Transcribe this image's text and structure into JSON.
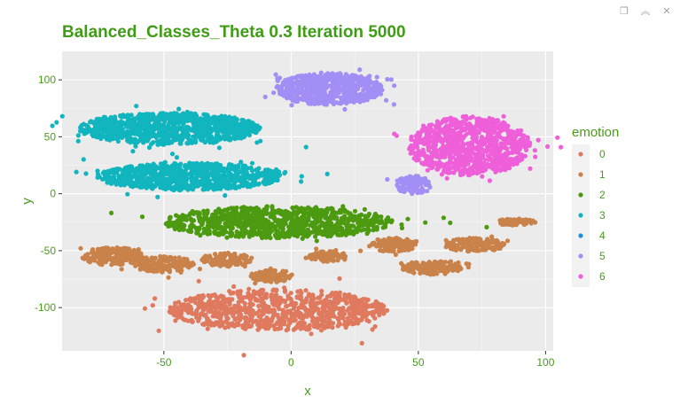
{
  "window": {
    "controls": [
      {
        "name": "restore-icon",
        "glyph": "❐"
      },
      {
        "name": "collapse-icon",
        "glyph": "︽"
      },
      {
        "name": "close-icon",
        "glyph": "✕"
      }
    ]
  },
  "chart_data": {
    "type": "scatter",
    "title": "Balanced_Classes_Theta 0.3 Iteration 5000",
    "xlabel": "x",
    "ylabel": "y",
    "xlim": [
      -90,
      103
    ],
    "ylim": [
      -138,
      125
    ],
    "xticks": [
      -50,
      0,
      50,
      100
    ],
    "yticks": [
      -100,
      -50,
      0,
      50,
      100
    ],
    "grid": true,
    "legend": {
      "title": "emotion",
      "position": "right",
      "entries": [
        "0",
        "1",
        "2",
        "3",
        "4",
        "5",
        "6"
      ]
    },
    "series": [
      {
        "name": "0",
        "color": "#E07A5F",
        "clusters": [
          {
            "cx": -5,
            "cy": -102,
            "rx": 43,
            "ry": 18
          }
        ]
      },
      {
        "name": "1",
        "color": "#C9824A",
        "clusters": [
          {
            "cx": -70,
            "cy": -55,
            "rx": 12,
            "ry": 8
          },
          {
            "cx": -50,
            "cy": -62,
            "rx": 12,
            "ry": 7
          },
          {
            "cx": -25,
            "cy": -58,
            "rx": 10,
            "ry": 6
          },
          {
            "cx": -8,
            "cy": -72,
            "rx": 8,
            "ry": 6
          },
          {
            "cx": 15,
            "cy": -55,
            "rx": 8,
            "ry": 5
          },
          {
            "cx": 40,
            "cy": -45,
            "rx": 10,
            "ry": 6
          },
          {
            "cx": 55,
            "cy": -65,
            "rx": 12,
            "ry": 6
          },
          {
            "cx": 72,
            "cy": -45,
            "rx": 12,
            "ry": 6
          },
          {
            "cx": 88,
            "cy": -25,
            "rx": 8,
            "ry": 3
          }
        ]
      },
      {
        "name": "2",
        "color": "#4C9A10",
        "clusters": [
          {
            "cx": -5,
            "cy": -25,
            "rx": 45,
            "ry": 14
          }
        ]
      },
      {
        "name": "3",
        "color": "#10B5BE",
        "clusters": [
          {
            "cx": -48,
            "cy": 57,
            "rx": 36,
            "ry": 14
          },
          {
            "cx": -40,
            "cy": 15,
            "rx": 36,
            "ry": 12
          }
        ]
      },
      {
        "name": "4",
        "color": "#1F8FD8",
        "clusters": []
      },
      {
        "name": "5",
        "color": "#A28EF5",
        "clusters": [
          {
            "cx": 15,
            "cy": 92,
            "rx": 21,
            "ry": 14
          },
          {
            "cx": 48,
            "cy": 8,
            "rx": 7,
            "ry": 8
          }
        ]
      },
      {
        "name": "6",
        "color": "#EE5FD9",
        "clusters": [
          {
            "cx": 70,
            "cy": 42,
            "rx": 24,
            "ry": 26
          }
        ]
      }
    ]
  }
}
